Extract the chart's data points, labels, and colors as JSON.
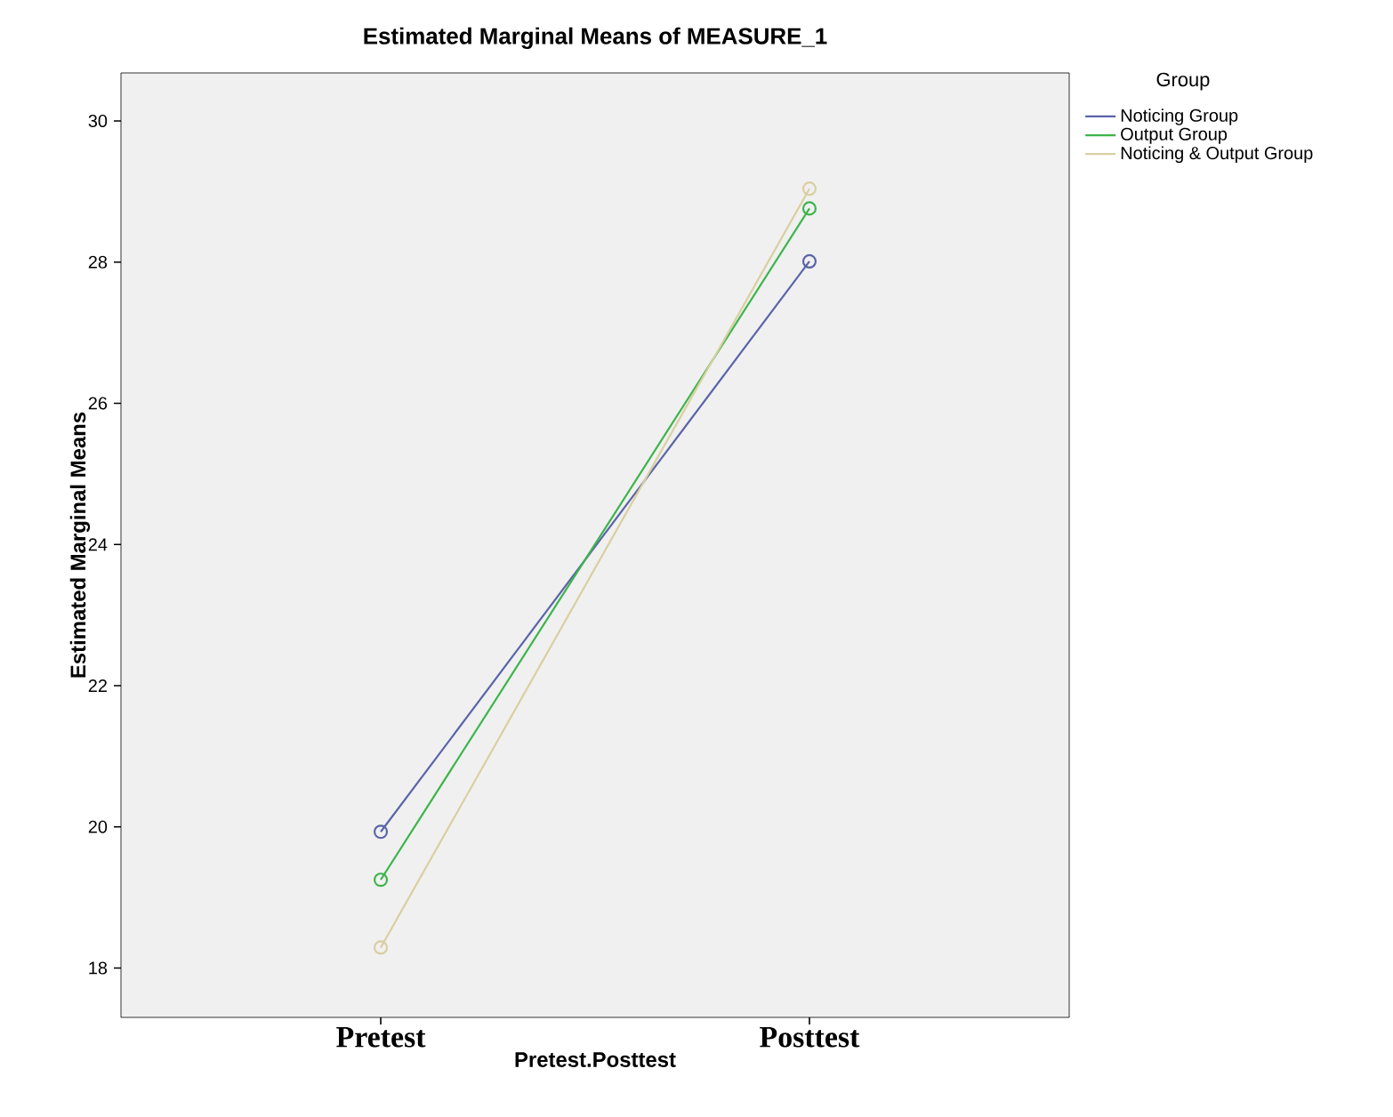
{
  "chart_data": {
    "type": "line",
    "title": "Estimated Marginal Means of MEASURE_1",
    "xlabel": "Pretest.Posttest",
    "ylabel": "Estimated Marginal Means",
    "legend_title": "Group",
    "categories": [
      "Pretest",
      "Posttest"
    ],
    "series": [
      {
        "name": "Noticing Group",
        "color": "#5a64a8",
        "values": [
          19.93,
          28.01
        ]
      },
      {
        "name": "Output Group",
        "color": "#3cb44b",
        "values": [
          19.25,
          28.76
        ]
      },
      {
        "name": "Noticing & Output Group",
        "color": "#d8cfa0",
        "values": [
          18.29,
          29.04
        ]
      }
    ],
    "ylim": [
      17.3,
      30.68
    ],
    "yticks": [
      18,
      20,
      22,
      24,
      26,
      28,
      30
    ],
    "legend": "top right",
    "marker": "circle",
    "line_style": "solid"
  }
}
